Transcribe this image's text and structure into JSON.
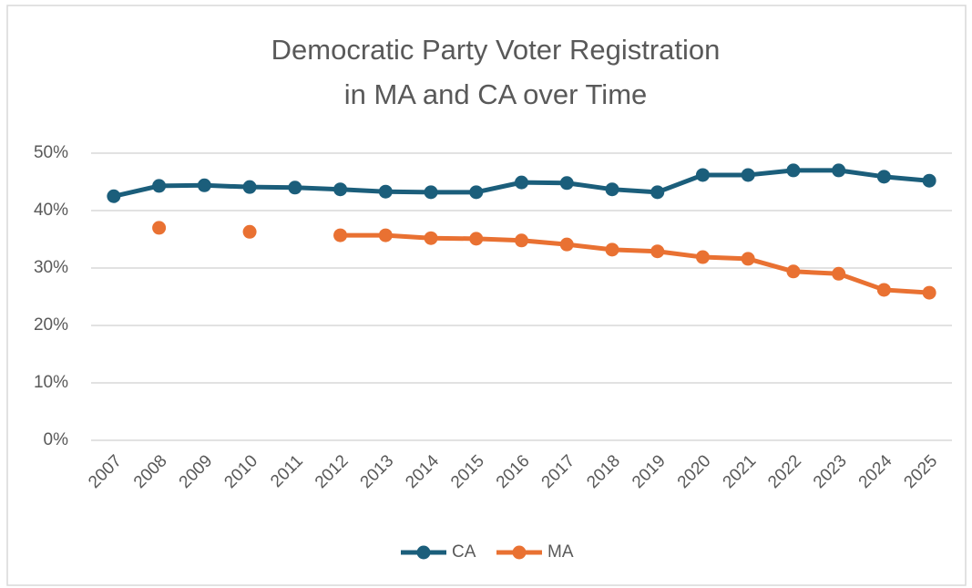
{
  "chart_data": {
    "type": "line",
    "title": [
      "Democratic Party Voter Registration",
      "in MA and CA over Time"
    ],
    "categories": [
      "2007",
      "2008",
      "2009",
      "2010",
      "2011",
      "2012",
      "2013",
      "2014",
      "2015",
      "2016",
      "2017",
      "2018",
      "2019",
      "2020",
      "2021",
      "2022",
      "2023",
      "2024",
      "2025"
    ],
    "series": [
      {
        "name": "CA",
        "color": "#1b5e7b",
        "values": [
          42.5,
          44.3,
          44.4,
          44.1,
          44.0,
          43.7,
          43.3,
          43.2,
          43.2,
          44.9,
          44.8,
          43.7,
          43.2,
          46.2,
          46.2,
          47.0,
          47.0,
          45.9,
          45.2
        ]
      },
      {
        "name": "MA",
        "color": "#e97132",
        "values": [
          null,
          37.0,
          null,
          36.3,
          null,
          35.7,
          35.7,
          35.2,
          35.1,
          34.8,
          34.1,
          33.2,
          32.9,
          31.9,
          31.6,
          29.4,
          29.0,
          26.2,
          25.7
        ]
      }
    ],
    "ylim": [
      0,
      50
    ],
    "yticks": [
      {
        "value": 0,
        "label": "0%"
      },
      {
        "value": 10,
        "label": "10%"
      },
      {
        "value": 20,
        "label": "20%"
      },
      {
        "value": 30,
        "label": "30%"
      },
      {
        "value": 40,
        "label": "40%"
      },
      {
        "value": 50,
        "label": "50%"
      }
    ],
    "grid": true,
    "legend": "bottom"
  }
}
